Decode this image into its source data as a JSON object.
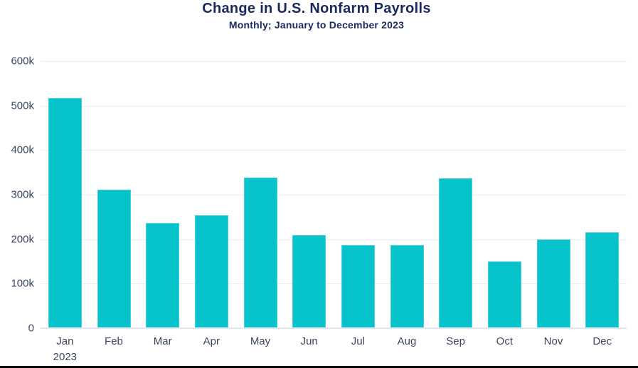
{
  "header": {
    "title": "Change in U.S. Nonfarm Payrolls",
    "subtitle": "Monthly; January to December 2023"
  },
  "chart_data": {
    "type": "bar",
    "title": "Change in U.S. Nonfarm Payrolls",
    "subtitle": "Monthly; January to December 2023",
    "categories": [
      "Jan",
      "Feb",
      "Mar",
      "Apr",
      "May",
      "Jun",
      "Jul",
      "Aug",
      "Sep",
      "Oct",
      "Nov",
      "Dec"
    ],
    "x_first_category_sublabel": "2023",
    "values_thousands": [
      517,
      311,
      236,
      253,
      339,
      209,
      187,
      187,
      336,
      150,
      199,
      216
    ],
    "value_suffix": "k",
    "y_axis": {
      "min": 0,
      "max": 600,
      "tick_step": 100,
      "tick_labels": [
        "0",
        "100k",
        "200k",
        "300k",
        "400k",
        "500k",
        "600k"
      ]
    },
    "grid": "horizontal-only",
    "legend": "none",
    "colors": {
      "bar": "#06c2cb",
      "title_text": "#1a2a5e",
      "axis_text": "#3b4660",
      "gridline": "#e9eef6",
      "axis_line": "#e2e5f0",
      "background": "#ffffff",
      "bottom_edge": "#000000"
    }
  }
}
